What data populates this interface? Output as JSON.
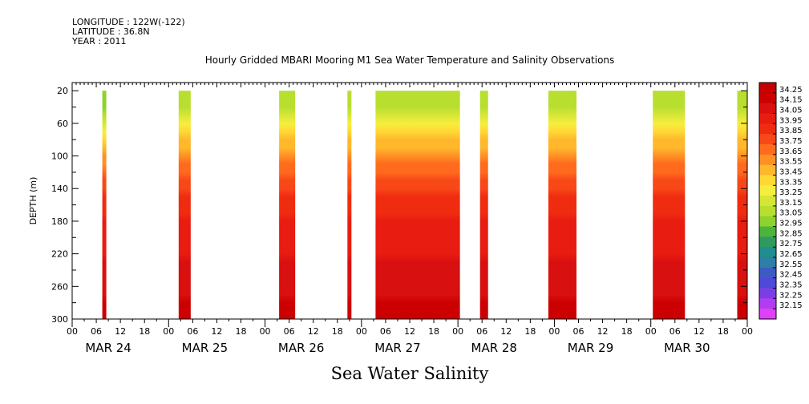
{
  "meta": {
    "longitude": "LONGITUDE : 122W(-122)",
    "latitude": "LATITUDE : 36.8N",
    "year": "YEAR : 2011"
  },
  "chart_data": {
    "type": "heatmap",
    "title": "Hourly Gridded MBARI Mooring M1 Sea Water Temperature and Salinity Observations",
    "xlabel": "Sea Water Salinity",
    "ylabel": "DEPTH (m)",
    "y_ticks": [
      20,
      60,
      100,
      140,
      180,
      220,
      260,
      300
    ],
    "ylim": [
      300,
      10
    ],
    "x_tick_labels": [
      "00",
      "06",
      "12",
      "18",
      "00",
      "06",
      "12",
      "18",
      "00",
      "06",
      "12",
      "18",
      "00",
      "06",
      "12",
      "18",
      "00",
      "06",
      "12",
      "18",
      "00",
      "06",
      "12",
      "18",
      "00",
      "06",
      "12",
      "18",
      "00"
    ],
    "x_day_labels": [
      "MAR 24",
      "MAR 25",
      "MAR 26",
      "MAR 27",
      "MAR 28",
      "MAR 29",
      "MAR 30"
    ],
    "xlim_hours": [
      0,
      168
    ],
    "colorbar": {
      "levels": [
        34.25,
        34.15,
        34.05,
        33.95,
        33.85,
        33.75,
        33.65,
        33.55,
        33.45,
        33.35,
        33.25,
        33.15,
        33.05,
        32.95,
        32.85,
        32.75,
        32.65,
        32.55,
        32.45,
        32.35,
        32.25,
        32.15
      ],
      "colors": [
        "#c40000",
        "#cc0000",
        "#d81010",
        "#e81c10",
        "#f02c10",
        "#f84818",
        "#ff6a1e",
        "#ff9024",
        "#ffb82c",
        "#ffd836",
        "#f6ee3c",
        "#d6e636",
        "#b8de30",
        "#8ed22e",
        "#4cb43a",
        "#2e9a62",
        "#1e8e8e",
        "#2e7ea6",
        "#3c5cc4",
        "#5048d8",
        "#7c3ee4",
        "#b43cf0",
        "#e040f8"
      ]
    },
    "data_segments": [
      {
        "start_hour": 7.5,
        "end_hour": 8.5,
        "surface_salinity": 33.0,
        "mid_salinity": 33.9,
        "deep_salinity": 34.2
      },
      {
        "start_hour": 26.5,
        "end_hour": 29.5,
        "surface_salinity": 33.1,
        "mid_salinity": 33.9,
        "deep_salinity": 34.2
      },
      {
        "start_hour": 51.5,
        "end_hour": 55.5,
        "surface_salinity": 33.1,
        "mid_salinity": 33.9,
        "deep_salinity": 34.2
      },
      {
        "start_hour": 68.5,
        "end_hour": 69.5,
        "surface_salinity": 33.1,
        "mid_salinity": 33.9,
        "deep_salinity": 34.2
      },
      {
        "start_hour": 75.5,
        "end_hour": 96.5,
        "surface_salinity": 33.1,
        "mid_salinity": 33.9,
        "deep_salinity": 34.2
      },
      {
        "start_hour": 101.5,
        "end_hour": 103.5,
        "surface_salinity": 33.1,
        "mid_salinity": 33.9,
        "deep_salinity": 34.2
      },
      {
        "start_hour": 118.5,
        "end_hour": 125.5,
        "surface_salinity": 33.1,
        "mid_salinity": 33.9,
        "deep_salinity": 34.2
      },
      {
        "start_hour": 144.5,
        "end_hour": 152.5,
        "surface_salinity": 33.1,
        "mid_salinity": 33.9,
        "deep_salinity": 34.2
      },
      {
        "start_hour": 165.5,
        "end_hour": 168,
        "surface_salinity": 33.1,
        "mid_salinity": 33.9,
        "deep_salinity": 34.2
      }
    ]
  }
}
